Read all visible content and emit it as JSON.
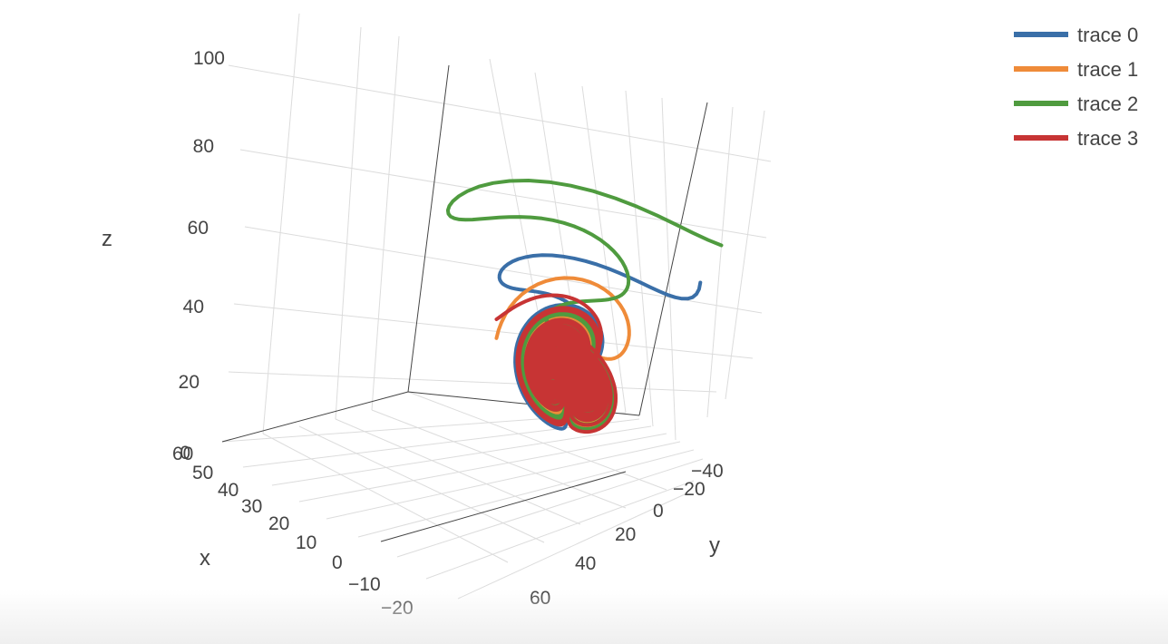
{
  "chart_data": {
    "type": "scatter3d",
    "mode": "lines",
    "x_axis": {
      "label": "x",
      "ticks": [
        "−20",
        "−10",
        "0",
        "10",
        "20",
        "30",
        "40",
        "50",
        "60"
      ],
      "range": [
        -20,
        60
      ]
    },
    "y_axis": {
      "label": "y",
      "ticks": [
        "−40",
        "−20",
        "0",
        "20",
        "40",
        "60"
      ],
      "range": [
        -40,
        60
      ]
    },
    "z_axis": {
      "label": "z",
      "ticks": [
        "0",
        "20",
        "40",
        "60",
        "80",
        "100"
      ],
      "range": [
        0,
        100
      ]
    },
    "grid": true,
    "legend_position": "top-right",
    "series": [
      {
        "name": "trace 0",
        "color": "#3a6fa8"
      },
      {
        "name": "trace 1",
        "color": "#ef8b39"
      },
      {
        "name": "trace 2",
        "color": "#4f9b3f"
      },
      {
        "name": "trace 3",
        "color": "#c73434"
      }
    ]
  }
}
